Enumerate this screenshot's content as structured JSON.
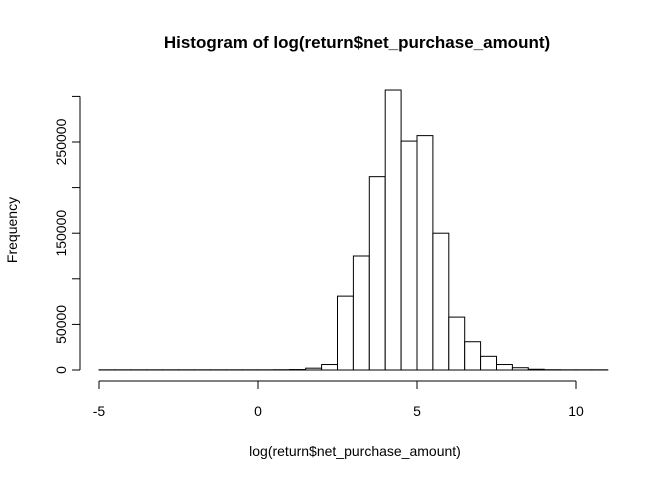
{
  "chart_data": {
    "type": "bar",
    "title": "Histogram of log(return$net_purchase_amount)",
    "xlabel": "log(return$net_purchase_amount)",
    "ylabel": "Frequency",
    "xlim": [
      -5,
      11
    ],
    "ylim": [
      0,
      300000
    ],
    "bin_width": 0.5,
    "x_ticks": [
      -5,
      0,
      5,
      10
    ],
    "y_ticks": [
      0,
      50000,
      150000,
      250000
    ],
    "bins": [
      {
        "x0": -5.0,
        "x1": -4.5,
        "count": 200
      },
      {
        "x0": -4.5,
        "x1": -4.0,
        "count": 200
      },
      {
        "x0": -4.0,
        "x1": -3.5,
        "count": 200
      },
      {
        "x0": -3.5,
        "x1": -3.0,
        "count": 200
      },
      {
        "x0": -3.0,
        "x1": -2.5,
        "count": 200
      },
      {
        "x0": -2.5,
        "x1": -2.0,
        "count": 200
      },
      {
        "x0": -2.0,
        "x1": -1.5,
        "count": 200
      },
      {
        "x0": -1.5,
        "x1": -1.0,
        "count": 200
      },
      {
        "x0": -1.0,
        "x1": -0.5,
        "count": 200
      },
      {
        "x0": -0.5,
        "x1": 0.0,
        "count": 200
      },
      {
        "x0": 0.0,
        "x1": 0.5,
        "count": 200
      },
      {
        "x0": 0.5,
        "x1": 1.0,
        "count": 300
      },
      {
        "x0": 1.0,
        "x1": 1.5,
        "count": 500
      },
      {
        "x0": 1.5,
        "x1": 2.0,
        "count": 2000
      },
      {
        "x0": 2.0,
        "x1": 2.5,
        "count": 6000
      },
      {
        "x0": 2.5,
        "x1": 3.0,
        "count": 81000
      },
      {
        "x0": 3.0,
        "x1": 3.5,
        "count": 125000
      },
      {
        "x0": 3.5,
        "x1": 4.0,
        "count": 212000
      },
      {
        "x0": 4.0,
        "x1": 4.5,
        "count": 307000
      },
      {
        "x0": 4.5,
        "x1": 5.0,
        "count": 251000
      },
      {
        "x0": 5.0,
        "x1": 5.5,
        "count": 257000
      },
      {
        "x0": 5.5,
        "x1": 6.0,
        "count": 150000
      },
      {
        "x0": 6.0,
        "x1": 6.5,
        "count": 58000
      },
      {
        "x0": 6.5,
        "x1": 7.0,
        "count": 31000
      },
      {
        "x0": 7.0,
        "x1": 7.5,
        "count": 15000
      },
      {
        "x0": 7.5,
        "x1": 8.0,
        "count": 6000
      },
      {
        "x0": 8.0,
        "x1": 8.5,
        "count": 2500
      },
      {
        "x0": 8.5,
        "x1": 9.0,
        "count": 800
      },
      {
        "x0": 9.0,
        "x1": 9.5,
        "count": 300
      },
      {
        "x0": 9.5,
        "x1": 10.0,
        "count": 200
      },
      {
        "x0": 10.0,
        "x1": 10.5,
        "count": 200
      },
      {
        "x0": 10.5,
        "x1": 11.0,
        "count": 200
      }
    ]
  }
}
